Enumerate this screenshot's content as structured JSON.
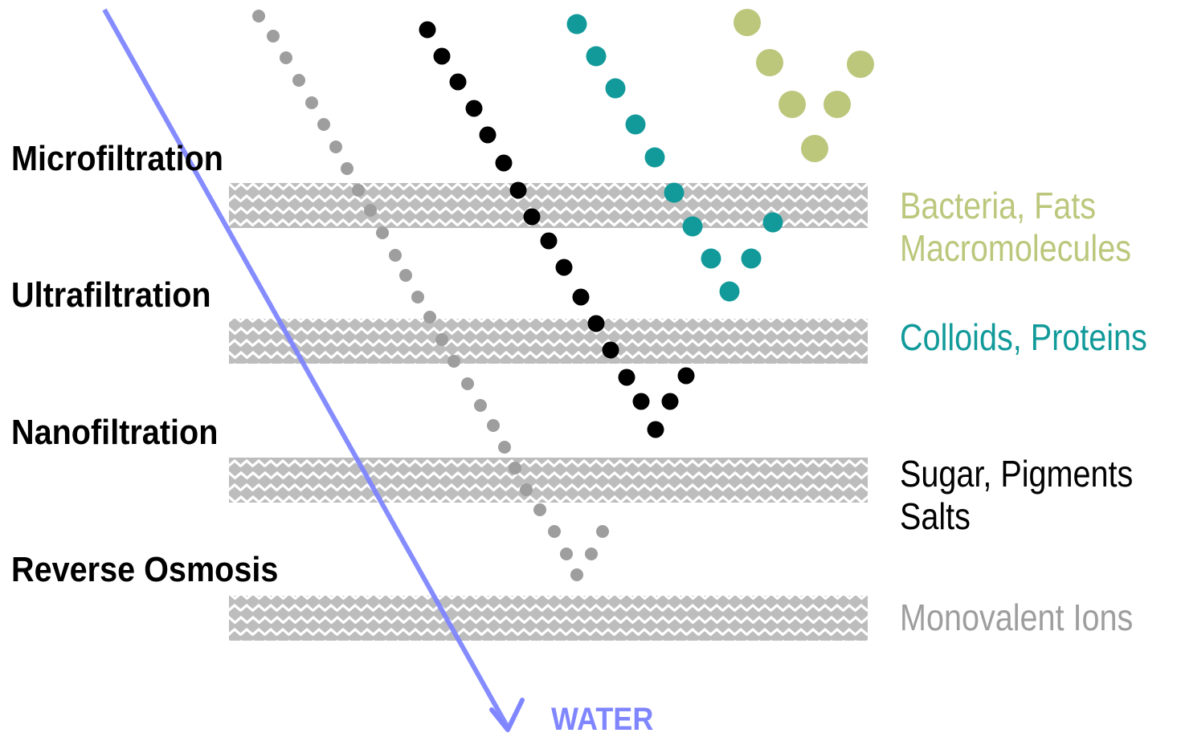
{
  "processes": [
    {
      "label": "Microfiltration"
    },
    {
      "label": "Ultrafiltration"
    },
    {
      "label": "Nanofiltration"
    },
    {
      "label": "Reverse Osmosis"
    }
  ],
  "retained": [
    {
      "lines": [
        "Bacteria, Fats",
        "Macromolecules"
      ],
      "color": "#bcc77c"
    },
    {
      "lines": [
        "Colloids, Proteins"
      ],
      "color": "#129a9a"
    },
    {
      "lines": [
        "Sugar, Pigments",
        "Salts"
      ],
      "color": "#000000"
    },
    {
      "lines": [
        "Monovalent Ions"
      ],
      "color": "#9e9e9e"
    }
  ],
  "water": {
    "label": "WATER",
    "color": "#7f86ff"
  },
  "membrane": {
    "color": "#bdbdbd",
    "pattern_color": "#ffffff",
    "name": "membrane-layer"
  },
  "particle_colors": {
    "large": "#bcc77c",
    "medium": "#129a9a",
    "small": "#000000",
    "ions": "#9e9e9e"
  }
}
